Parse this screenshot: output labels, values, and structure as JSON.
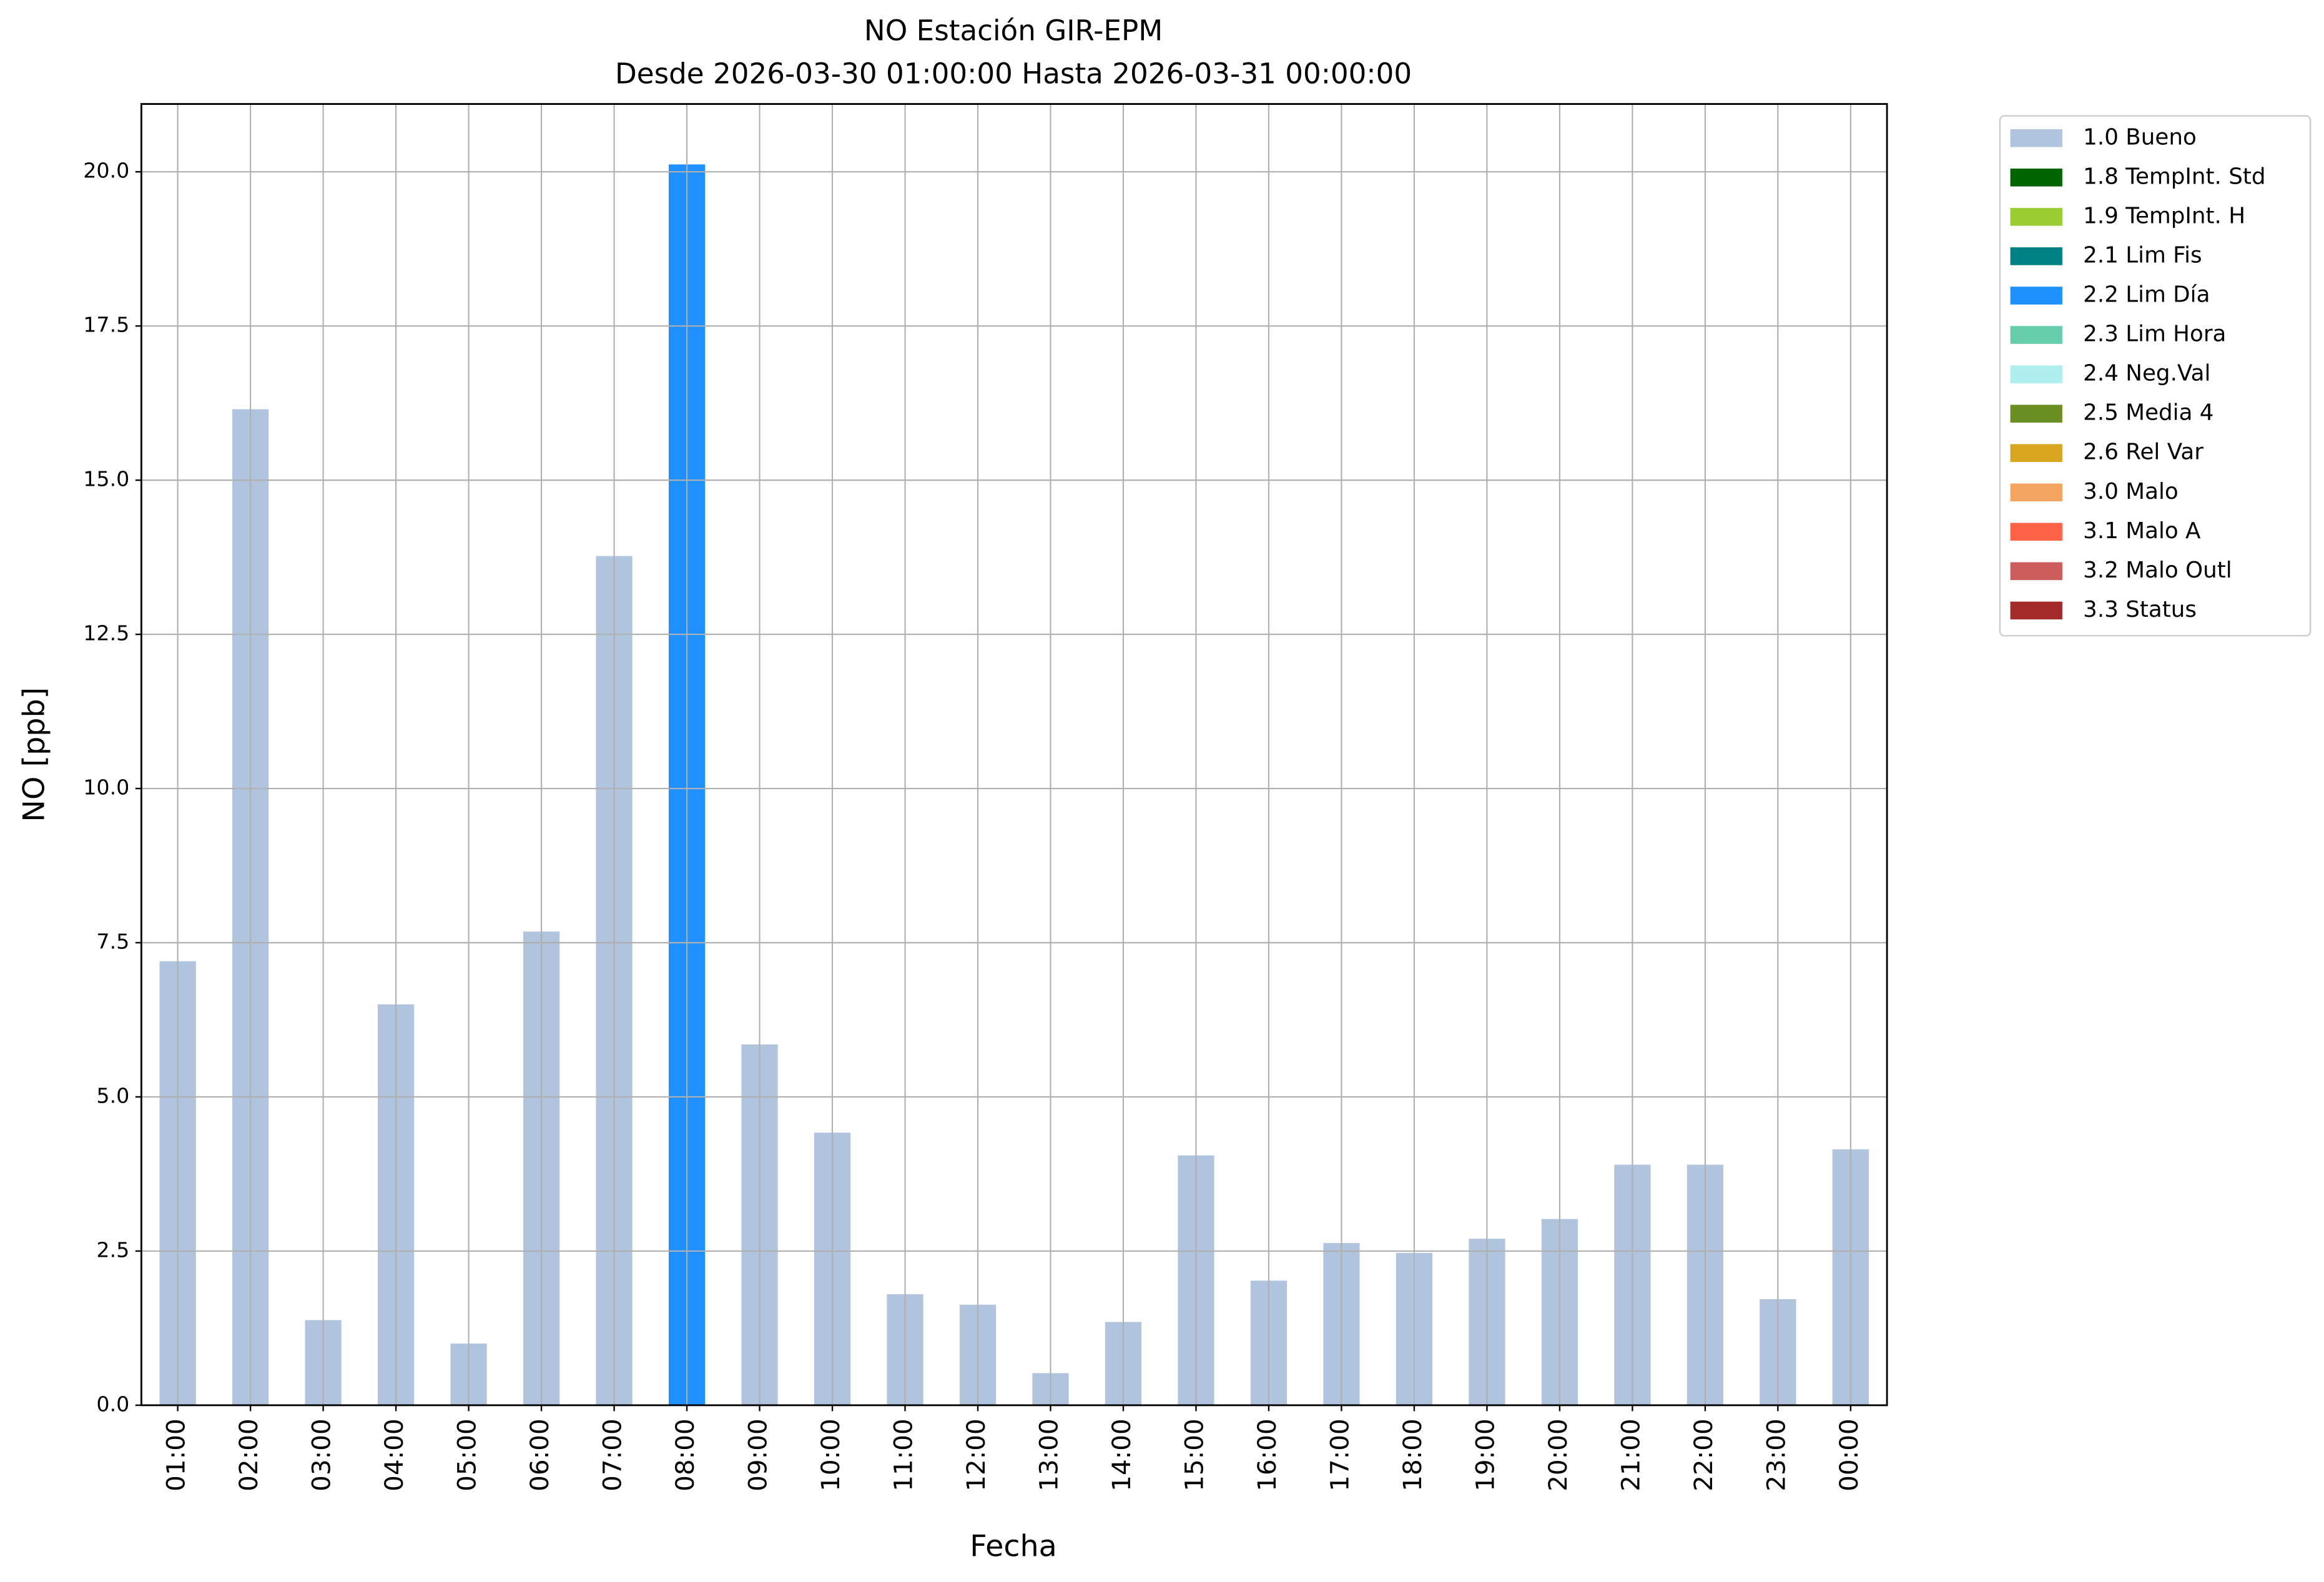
{
  "chart_data": {
    "type": "stacked_bar",
    "title": "NO Estación GIR-EPM",
    "subtitle": "Desde 2026-03-30 01:00:00 Hasta 2026-03-31 00:00:00",
    "x_label": "Fecha",
    "y_label": "NO [ppb]",
    "categories": [
      "01:00",
      "02:00",
      "03:00",
      "04:00",
      "05:00",
      "06:00",
      "07:00",
      "08:00",
      "09:00",
      "10:00",
      "11:00",
      "12:00",
      "13:00",
      "14:00",
      "15:00",
      "16:00",
      "17:00",
      "18:00",
      "19:00",
      "20:00",
      "21:00",
      "22:00",
      "23:00",
      "00:00"
    ],
    "series": [
      {
        "name": "1.0 Bueno",
        "color": "#b0c4de",
        "values": [
          7.2,
          16.15,
          1.38,
          6.5,
          1.0,
          7.68,
          13.77,
          null,
          5.85,
          4.42,
          1.8,
          1.63,
          0.52,
          1.35,
          4.05,
          2.02,
          2.63,
          2.47,
          2.7,
          3.02,
          3.9,
          3.9,
          1.72,
          4.15
        ]
      },
      {
        "name": "1.8 TempInt. Std",
        "color": "#006400",
        "values": [
          null,
          null,
          null,
          null,
          null,
          null,
          null,
          null,
          null,
          null,
          null,
          null,
          null,
          null,
          null,
          null,
          null,
          null,
          null,
          null,
          null,
          null,
          null,
          null
        ]
      },
      {
        "name": "1.9 TempInt. H",
        "color": "#9acd32",
        "values": [
          null,
          null,
          null,
          null,
          null,
          null,
          null,
          null,
          null,
          null,
          null,
          null,
          null,
          null,
          null,
          null,
          null,
          null,
          null,
          null,
          null,
          null,
          null,
          null
        ]
      },
      {
        "name": "2.1 Lim Fis",
        "color": "#008080",
        "values": [
          null,
          null,
          null,
          null,
          null,
          null,
          null,
          null,
          null,
          null,
          null,
          null,
          null,
          null,
          null,
          null,
          null,
          null,
          null,
          null,
          null,
          null,
          null,
          null
        ]
      },
      {
        "name": "2.2 Lim Día",
        "color": "#1e90ff",
        "values": [
          null,
          null,
          null,
          null,
          null,
          null,
          null,
          20.12,
          null,
          null,
          null,
          null,
          null,
          null,
          null,
          null,
          null,
          null,
          null,
          null,
          null,
          null,
          null,
          null
        ]
      },
      {
        "name": "2.3 Lim Hora",
        "color": "#66cdaa",
        "values": [
          null,
          null,
          null,
          null,
          null,
          null,
          null,
          null,
          null,
          null,
          null,
          null,
          null,
          null,
          null,
          null,
          null,
          null,
          null,
          null,
          null,
          null,
          null,
          null
        ]
      },
      {
        "name": "2.4 Neg.Val",
        "color": "#afeeee",
        "values": [
          null,
          null,
          null,
          null,
          null,
          null,
          null,
          null,
          null,
          null,
          null,
          null,
          null,
          null,
          null,
          null,
          null,
          null,
          null,
          null,
          null,
          null,
          null,
          null
        ]
      },
      {
        "name": "2.5 Media 4",
        "color": "#6b8e23",
        "values": [
          null,
          null,
          null,
          null,
          null,
          null,
          null,
          null,
          null,
          null,
          null,
          null,
          null,
          null,
          null,
          null,
          null,
          null,
          null,
          null,
          null,
          null,
          null,
          null
        ]
      },
      {
        "name": "2.6 Rel Var",
        "color": "#daa520",
        "values": [
          null,
          null,
          null,
          null,
          null,
          null,
          null,
          null,
          null,
          null,
          null,
          null,
          null,
          null,
          null,
          null,
          null,
          null,
          null,
          null,
          null,
          null,
          null,
          null
        ]
      },
      {
        "name": "3.0 Malo",
        "color": "#f4a460",
        "values": [
          null,
          null,
          null,
          null,
          null,
          null,
          null,
          null,
          null,
          null,
          null,
          null,
          null,
          null,
          null,
          null,
          null,
          null,
          null,
          null,
          null,
          null,
          null,
          null
        ]
      },
      {
        "name": "3.1 Malo A",
        "color": "#ff6347",
        "values": [
          null,
          null,
          null,
          null,
          null,
          null,
          null,
          null,
          null,
          null,
          null,
          null,
          null,
          null,
          null,
          null,
          null,
          null,
          null,
          null,
          null,
          null,
          null,
          null
        ]
      },
      {
        "name": "3.2 Malo Outl",
        "color": "#cd5c5c",
        "values": [
          null,
          null,
          null,
          null,
          null,
          null,
          null,
          null,
          null,
          null,
          null,
          null,
          null,
          null,
          null,
          null,
          null,
          null,
          null,
          null,
          null,
          null,
          null,
          null
        ]
      },
      {
        "name": "3.3 Status",
        "color": "#a52a2a",
        "values": [
          null,
          null,
          null,
          null,
          null,
          null,
          null,
          null,
          null,
          null,
          null,
          null,
          null,
          null,
          null,
          null,
          null,
          null,
          null,
          null,
          null,
          null,
          null,
          null
        ]
      }
    ],
    "ylim": [
      0,
      21.1
    ],
    "yticks": [
      {
        "value": 0,
        "label": "0.0"
      },
      2.5,
      {
        "value": 5,
        "label": "5.0"
      },
      7.5,
      {
        "value": 10,
        "label": "10.0"
      },
      12.5,
      {
        "value": 15,
        "label": "15.0"
      },
      17.5,
      {
        "value": 20,
        "label": "20.0"
      }
    ],
    "grid": true
  }
}
